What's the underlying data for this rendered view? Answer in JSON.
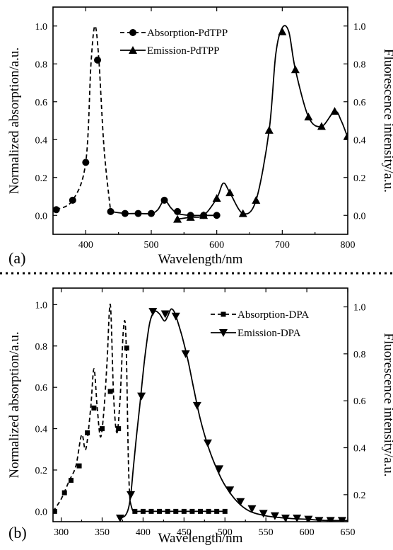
{
  "chart_data": [
    {
      "type": "line",
      "panel_label": "(a)",
      "xlabel": "Wavelength/nm",
      "ylabel_left": "Normalized absorption/a.u.",
      "ylabel_right": "Fluorescence intensity/a.u.",
      "xlim": [
        350,
        800
      ],
      "ylim_left": [
        -0.1,
        1.1
      ],
      "ylim_right": [
        -0.1,
        1.1
      ],
      "x_ticks": [
        "400",
        "500",
        "600",
        "700",
        "800"
      ],
      "y_ticks_left": [
        "0.0",
        "0.2",
        "0.4",
        "0.6",
        "0.8",
        "1.0"
      ],
      "y_ticks_right": [
        "0.0",
        "0.2",
        "0.4",
        "0.6",
        "0.8",
        "1.0"
      ],
      "legend_position": "top-center",
      "series": [
        {
          "name": "Absorption-PdTPP",
          "line_style": "dashed-to-solid",
          "marker": "circle",
          "x": [
            355,
            380,
            400,
            408,
            414,
            420,
            428,
            438,
            460,
            480,
            500,
            510,
            520,
            530,
            540,
            560,
            580,
            600
          ],
          "y": [
            0.03,
            0.08,
            0.28,
            0.8,
            1.0,
            0.82,
            0.35,
            0.02,
            0.01,
            0.01,
            0.01,
            0.03,
            0.08,
            0.04,
            0.01,
            0.0,
            0.0,
            0.0
          ],
          "dashed_until_x": 440,
          "marker_x": [
            355,
            380,
            400,
            418,
            438,
            460,
            480,
            500,
            520,
            540,
            560,
            580,
            600
          ],
          "marker_y": [
            0.03,
            0.08,
            0.28,
            0.82,
            0.02,
            0.01,
            0.01,
            0.01,
            0.08,
            0.02,
            0.0,
            0.0,
            0.0
          ]
        },
        {
          "name": "Emission-PdTPP",
          "line_style": "solid",
          "marker": "triangle-up",
          "x": [
            540,
            560,
            580,
            600,
            610,
            620,
            640,
            660,
            680,
            690,
            700,
            710,
            720,
            740,
            760,
            780,
            790,
            800
          ],
          "y": [
            -0.02,
            -0.01,
            0.0,
            0.09,
            0.17,
            0.12,
            0.01,
            0.08,
            0.45,
            0.85,
            0.99,
            0.97,
            0.77,
            0.52,
            0.47,
            0.55,
            0.5,
            0.41
          ],
          "marker_x": [
            540,
            560,
            580,
            600,
            620,
            640,
            660,
            680,
            700,
            720,
            740,
            760,
            780,
            800
          ],
          "marker_y": [
            -0.02,
            -0.01,
            0.0,
            0.09,
            0.12,
            0.01,
            0.08,
            0.45,
            0.97,
            0.77,
            0.52,
            0.47,
            0.55,
            0.42
          ]
        }
      ]
    },
    {
      "type": "line",
      "panel_label": "(b)",
      "xlabel": "Wavelength/nm",
      "ylabel_left": "Normalized absorption/a.u.",
      "ylabel_right": "Fluorescence intensity/a.u.",
      "xlim": [
        290,
        650
      ],
      "ylim_left": [
        -0.05,
        1.08
      ],
      "ylim_right": [
        0.085,
        1.08
      ],
      "x_ticks": [
        "300",
        "350",
        "400",
        "450",
        "500",
        "550",
        "600",
        "650"
      ],
      "y_ticks_left": [
        "0.0",
        "0.2",
        "0.4",
        "0.6",
        "0.8",
        "1.0"
      ],
      "y_ticks_right": [
        "0.2",
        "0.4",
        "0.6",
        "0.8",
        "1.0"
      ],
      "legend_position": "top-right",
      "series": [
        {
          "name": "Absorption-DPA",
          "line_style": "dashed-to-solid",
          "marker": "square",
          "x": [
            290,
            300,
            310,
            318,
            325,
            330,
            336,
            340,
            344,
            348,
            352,
            356,
            360,
            364,
            368,
            372,
            376,
            379,
            382,
            384,
            388,
            395,
            420,
            460,
            500
          ],
          "y": [
            0.0,
            0.06,
            0.15,
            0.22,
            0.37,
            0.3,
            0.5,
            0.69,
            0.5,
            0.36,
            0.48,
            0.72,
            1.0,
            0.56,
            0.38,
            0.55,
            0.88,
            0.85,
            0.25,
            0.05,
            0.0,
            0.0,
            0.0,
            0.0,
            0.0
          ],
          "dashed_until_x": 384,
          "marker_x": [
            292,
            304,
            312,
            322,
            332,
            340,
            350,
            360,
            370,
            380,
            390,
            400,
            410,
            420,
            430,
            440,
            450,
            460,
            470,
            480,
            490,
            500
          ],
          "marker_y": [
            0.0,
            0.09,
            0.15,
            0.22,
            0.38,
            0.5,
            0.4,
            0.58,
            0.4,
            0.79,
            0.0,
            0.0,
            0.0,
            0.0,
            0.0,
            0.0,
            0.0,
            0.0,
            0.0,
            0.0,
            0.0,
            0.0
          ]
        },
        {
          "name": "Emission-DPA",
          "line_style": "solid",
          "marker": "triangle-down",
          "x": [
            372,
            378,
            382,
            385,
            388,
            392,
            396,
            402,
            408,
            414,
            420,
            426,
            430,
            434,
            438,
            442,
            448,
            455,
            462,
            470,
            480,
            490,
            500,
            515,
            530,
            550,
            575,
            600,
            625,
            650
          ],
          "y": [
            0.1,
            0.11,
            0.14,
            0.2,
            0.31,
            0.45,
            0.58,
            0.78,
            0.93,
            0.98,
            0.97,
            0.94,
            0.96,
            0.99,
            0.98,
            0.94,
            0.87,
            0.77,
            0.65,
            0.52,
            0.4,
            0.31,
            0.24,
            0.17,
            0.13,
            0.11,
            0.1,
            0.095,
            0.09,
            0.09
          ],
          "marker_x": [
            372,
            385,
            398,
            412,
            427,
            440,
            452,
            466,
            479,
            493,
            506,
            519,
            533,
            547,
            561,
            574,
            588,
            602,
            615,
            629,
            643
          ],
          "marker_y": [
            0.1,
            0.2,
            0.62,
            0.98,
            0.97,
            0.96,
            0.8,
            0.58,
            0.42,
            0.31,
            0.22,
            0.17,
            0.14,
            0.12,
            0.11,
            0.1,
            0.1,
            0.095,
            0.09,
            0.09,
            0.09
          ]
        }
      ]
    }
  ]
}
